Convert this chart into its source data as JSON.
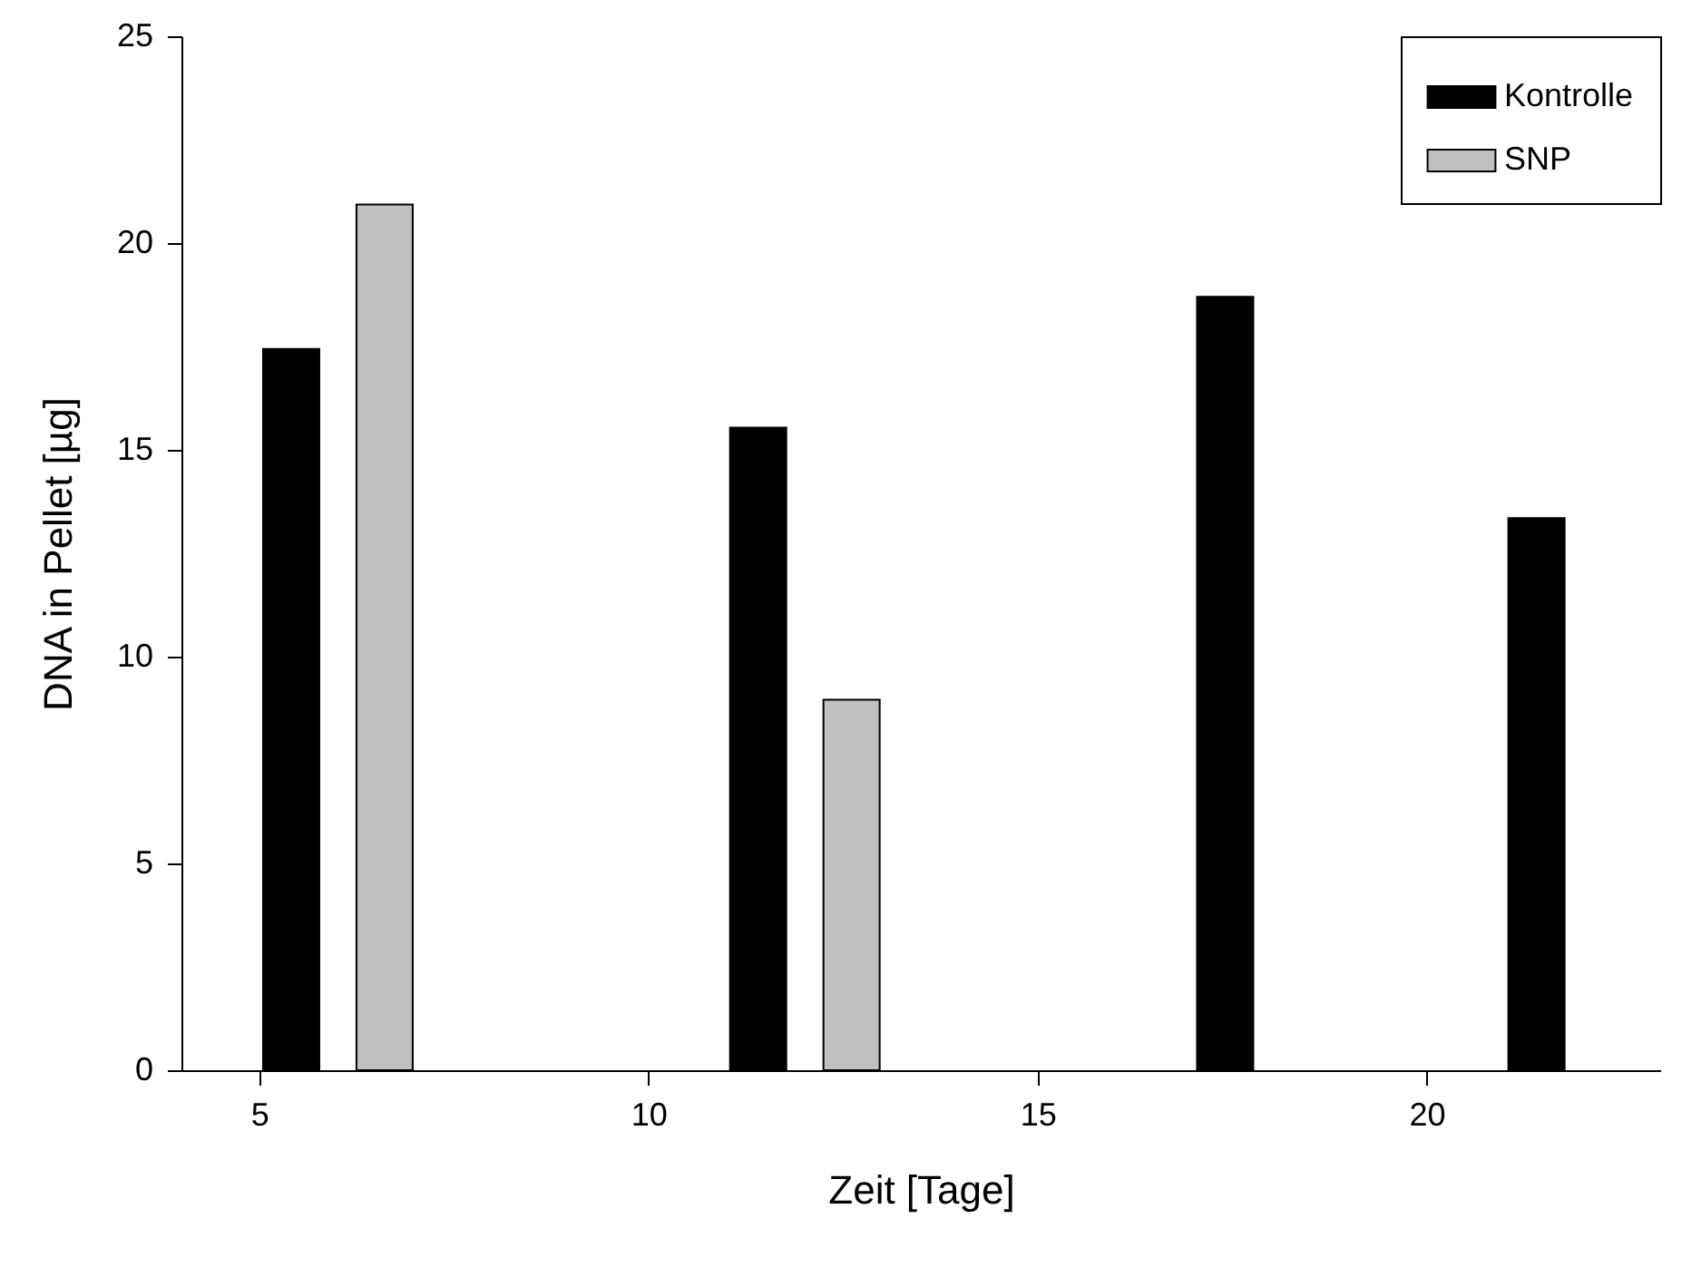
{
  "chart_data": {
    "type": "bar",
    "xlabel": "Zeit [Tage]",
    "ylabel": "DNA in Pellet [µg]",
    "series": [
      {
        "name": "Kontrolle",
        "color": "#000000",
        "x": [
          5.41,
          11.41,
          17.41,
          21.41
        ],
        "values": [
          17.44,
          15.54,
          18.7,
          13.35
        ]
      },
      {
        "name": "SNP",
        "color": "#c0c0c0",
        "x": [
          6.61,
          12.61
        ],
        "values": [
          20.93,
          8.96
        ]
      }
    ],
    "xlim": [
      4,
      23
    ],
    "xticks": [
      5,
      10,
      15,
      20
    ],
    "ylim": [
      0,
      25
    ],
    "yticks": [
      0,
      5,
      10,
      15,
      20,
      25
    ],
    "grid": false,
    "legend": "top right"
  }
}
